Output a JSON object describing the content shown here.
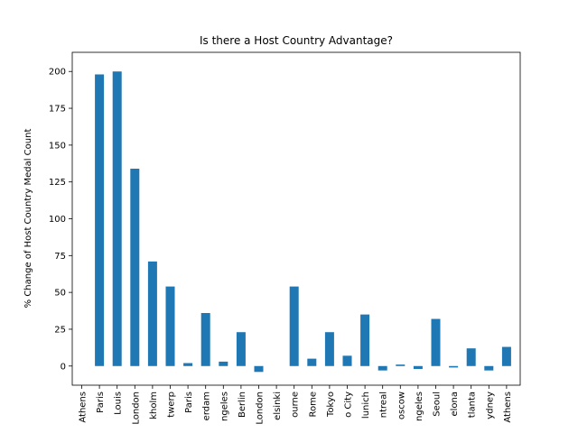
{
  "chart_data": {
    "type": "bar",
    "title": "Is there a Host Country Advantage?",
    "xlabel": "",
    "ylabel": "% Change of Host Country Medal Count",
    "ylim": [
      -13,
      213
    ],
    "yticks": [
      0,
      25,
      50,
      75,
      100,
      125,
      150,
      175,
      200
    ],
    "grid": false,
    "legend": "none",
    "bar_color": "#1f77b4",
    "categories": [
      "Athens",
      "Paris",
      "Louis",
      "London",
      "kholm",
      "twerp",
      "Paris",
      "erdam",
      "ngeles",
      "Berlin",
      "London",
      "elsinki",
      "ourne",
      "Rome",
      "Tokyo",
      "o City",
      "lunich",
      "ntreal",
      "oscow",
      "ngeles",
      "Seoul",
      "elona",
      "tlanta",
      "ydney",
      "Athens"
    ],
    "values": [
      0,
      198,
      200,
      134,
      71,
      54,
      2,
      36,
      3,
      23,
      -4,
      0,
      54,
      5,
      23,
      7,
      35,
      -3,
      1,
      -2,
      32,
      -1,
      12,
      -3,
      13
    ]
  }
}
